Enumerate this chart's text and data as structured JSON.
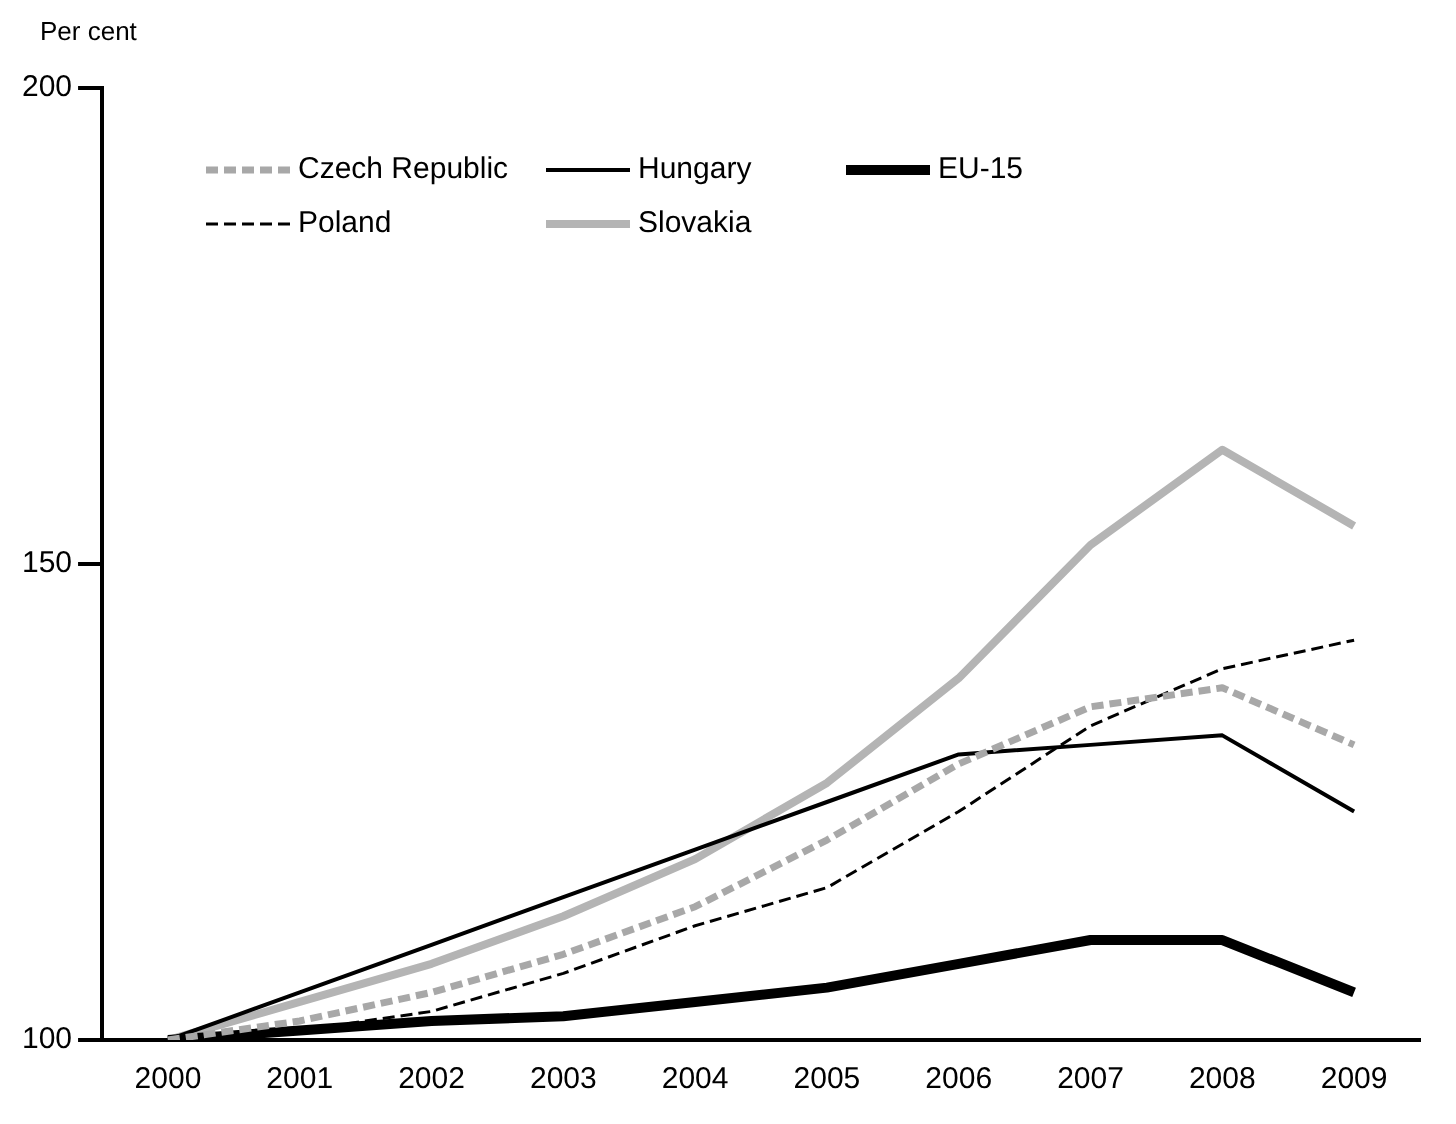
{
  "chart_data": {
    "type": "line",
    "ylabel": "Per cent",
    "categories": [
      "2000",
      "2001",
      "2002",
      "2003",
      "2004",
      "2005",
      "2006",
      "2007",
      "2008",
      "2009"
    ],
    "ylim": [
      100,
      200
    ],
    "yticks": [
      100,
      150,
      200
    ],
    "grid": false,
    "legend": "top left",
    "series": [
      {
        "name": "Czech Republic",
        "color": "#a8a8a8",
        "line_style": "dashed",
        "values": [
          100,
          102,
          105,
          109,
          114,
          121,
          129,
          135,
          137,
          131
        ]
      },
      {
        "name": "Hungary",
        "color": "#000000",
        "line_style": "solid",
        "values": [
          100,
          105,
          110,
          115,
          120,
          125,
          130,
          131,
          132,
          124
        ]
      },
      {
        "name": "EU-15",
        "color": "#000000",
        "line_style": "solid",
        "values": [
          100,
          101,
          102,
          102.5,
          104,
          105.5,
          108,
          110.5,
          110.5,
          105
        ]
      },
      {
        "name": "Poland",
        "color": "#000000",
        "line_style": "dashed",
        "values": [
          100,
          101,
          103,
          107,
          112,
          116,
          124,
          133,
          139,
          142
        ]
      },
      {
        "name": "Slovakia",
        "color": "#b4b4b4",
        "line_style": "solid",
        "values": [
          100,
          104,
          108,
          113,
          119,
          127,
          138,
          152,
          162,
          154
        ]
      }
    ]
  }
}
